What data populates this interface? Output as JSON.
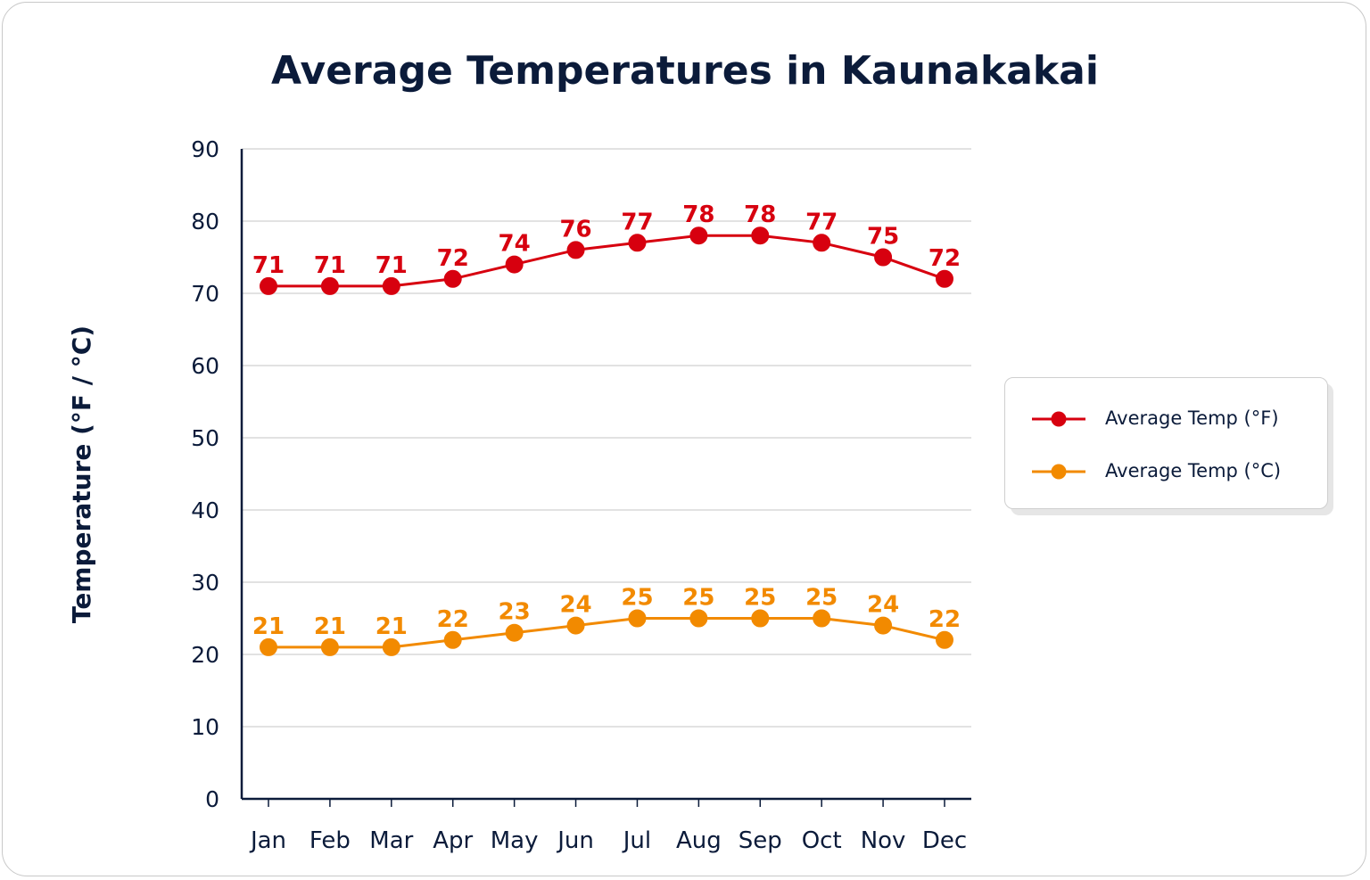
{
  "chart_data": {
    "type": "line",
    "title": "Average Temperatures in Kaunakakai",
    "xlabel": "",
    "ylabel": "Temperature (°F / °C)",
    "ylim": [
      0,
      90
    ],
    "yticks": [
      "0",
      "10",
      "20",
      "30",
      "40",
      "50",
      "60",
      "70",
      "80",
      "90"
    ],
    "categories": [
      "Jan",
      "Feb",
      "Mar",
      "Apr",
      "May",
      "Jun",
      "Jul",
      "Aug",
      "Sep",
      "Oct",
      "Nov",
      "Dec"
    ],
    "grid": true,
    "legend_position": "right",
    "series": [
      {
        "name": "Average Temp (°F)",
        "color": "#d7000f",
        "values": [
          71,
          71,
          71,
          72,
          74,
          76,
          77,
          78,
          78,
          77,
          75,
          72
        ]
      },
      {
        "name": "Average Temp (°C)",
        "color": "#f28a00",
        "values": [
          21,
          21,
          21,
          22,
          23,
          24,
          25,
          25,
          25,
          25,
          24,
          22
        ]
      }
    ]
  },
  "colors": {
    "text": "#0b1b3a",
    "grid": "#d8d8d8",
    "axis": "#0b1b3a"
  }
}
